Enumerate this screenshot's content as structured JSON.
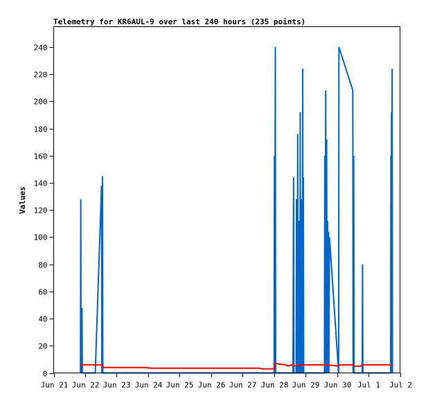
{
  "chart_data": {
    "type": "line",
    "title": "Telemetry for KR6AUL-9 over last 240 hours (235 points)",
    "xlabel": "",
    "ylabel": "Values",
    "ylim": [
      0,
      255
    ],
    "xlim": [
      0,
      11
    ],
    "y_ticks": [
      0,
      20,
      40,
      60,
      80,
      100,
      120,
      140,
      160,
      180,
      200,
      220,
      240
    ],
    "x_ticks": [
      {
        "label": "Jun 21",
        "day": 0
      },
      {
        "label": "Jun 22",
        "day": 1
      },
      {
        "label": "Jun 23",
        "day": 2
      },
      {
        "label": "Jun 24",
        "day": 3
      },
      {
        "label": "Jun 25",
        "day": 4
      },
      {
        "label": "Jun 26",
        "day": 5
      },
      {
        "label": "Jun 27",
        "day": 6
      },
      {
        "label": "Jun 28",
        "day": 7
      },
      {
        "label": "Jun 29",
        "day": 8
      },
      {
        "label": "Jun 30",
        "day": 9
      },
      {
        "label": "Jul 1",
        "day": 10
      },
      {
        "label": "Jul 2",
        "day": 11
      }
    ],
    "grid": false,
    "series": [
      {
        "color": "#0066cc",
        "points": [
          [
            0.85,
            0
          ],
          [
            0.86,
            128
          ],
          [
            0.87,
            0
          ],
          [
            0.9,
            48
          ],
          [
            0.91,
            0
          ],
          [
            1.32,
            0
          ],
          [
            1.52,
            138
          ],
          [
            1.53,
            0
          ],
          [
            1.55,
            145
          ],
          [
            1.56,
            0
          ],
          [
            7.0,
            0
          ],
          [
            7.01,
            160
          ],
          [
            7.02,
            0
          ],
          [
            7.04,
            240
          ],
          [
            7.05,
            0
          ],
          [
            7.6,
            0
          ],
          [
            7.62,
            144
          ],
          [
            7.63,
            0
          ],
          [
            7.7,
            0
          ],
          [
            7.71,
            128
          ],
          [
            7.72,
            0
          ],
          [
            7.74,
            0
          ],
          [
            7.75,
            176
          ],
          [
            7.76,
            0
          ],
          [
            7.78,
            0
          ],
          [
            7.79,
            112
          ],
          [
            7.8,
            0
          ],
          [
            7.82,
            0
          ],
          [
            7.83,
            192
          ],
          [
            7.84,
            0
          ],
          [
            7.86,
            0
          ],
          [
            7.87,
            128
          ],
          [
            7.88,
            0
          ],
          [
            7.9,
            0
          ],
          [
            7.91,
            224
          ],
          [
            7.92,
            0
          ],
          [
            7.93,
            144
          ],
          [
            7.94,
            0
          ],
          [
            8.6,
            0
          ],
          [
            8.61,
            160
          ],
          [
            8.62,
            0
          ],
          [
            8.64,
            208
          ],
          [
            8.65,
            0
          ],
          [
            8.67,
            172
          ],
          [
            8.68,
            0
          ],
          [
            8.7,
            112
          ],
          [
            8.71,
            0
          ],
          [
            8.73,
            104
          ],
          [
            8.74,
            0
          ],
          [
            8.76,
            100
          ],
          [
            9.05,
            0
          ],
          [
            9.06,
            240
          ],
          [
            9.5,
            208
          ],
          [
            9.51,
            0
          ],
          [
            9.53,
            160
          ],
          [
            9.54,
            0
          ],
          [
            9.8,
            0
          ],
          [
            9.81,
            80
          ],
          [
            9.82,
            0
          ],
          [
            10.7,
            0
          ],
          [
            10.71,
            160
          ],
          [
            10.72,
            0
          ],
          [
            10.73,
            192
          ],
          [
            10.74,
            96
          ],
          [
            10.75,
            224
          ],
          [
            10.76,
            0
          ]
        ]
      },
      {
        "color": "#ff0000",
        "points": [
          [
            0.85,
            6
          ],
          [
            1.55,
            6
          ],
          [
            1.57,
            4
          ],
          [
            2.95,
            4
          ],
          [
            3.05,
            3.5
          ],
          [
            6.55,
            3.5
          ],
          [
            6.6,
            3
          ],
          [
            7.0,
            3
          ],
          [
            7.01,
            7
          ],
          [
            7.35,
            6
          ],
          [
            7.45,
            5
          ],
          [
            7.55,
            6
          ],
          [
            7.7,
            5
          ],
          [
            7.85,
            6
          ],
          [
            8.0,
            6
          ],
          [
            8.6,
            6
          ],
          [
            8.9,
            5.5
          ],
          [
            9.05,
            5
          ],
          [
            9.1,
            6
          ],
          [
            9.5,
            6
          ],
          [
            9.55,
            5
          ],
          [
            9.75,
            5
          ],
          [
            9.8,
            6
          ],
          [
            10.75,
            6
          ]
        ]
      },
      {
        "color": "#000000",
        "points": [
          [
            0.85,
            0
          ],
          [
            10.75,
            0
          ]
        ]
      }
    ]
  }
}
